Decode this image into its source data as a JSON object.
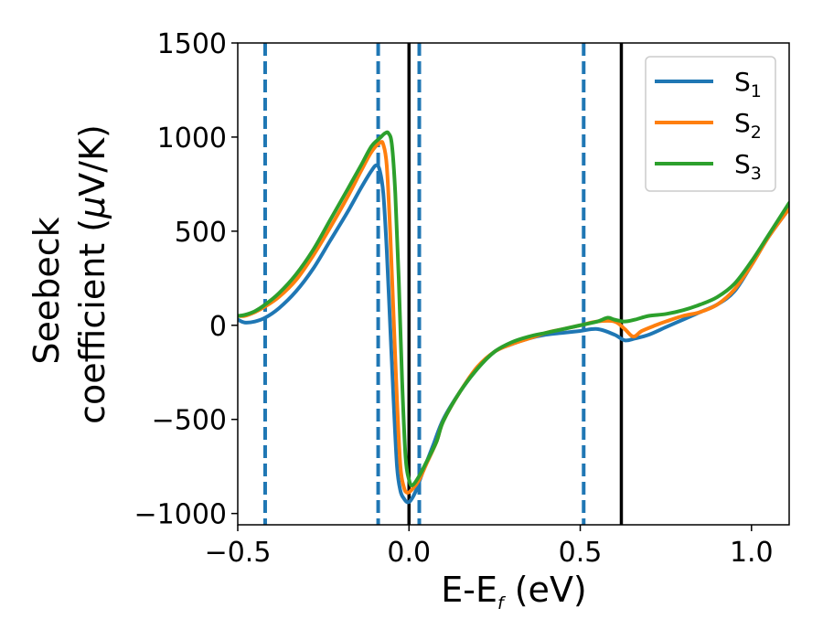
{
  "chart_data": {
    "type": "line",
    "xlabel": {
      "main": "E-E",
      "sub": "f",
      "unit": " (eV)"
    },
    "ylabel": {
      "line1": "Seebeck",
      "line2_pre": "coefficient  (",
      "mu": "μ",
      "line2_post": "V/K)"
    },
    "xlim": [
      -0.5,
      1.11
    ],
    "ylim": [
      -1060,
      1500
    ],
    "xticks": [
      -0.5,
      0.0,
      0.5,
      1.0
    ],
    "xtick_labels": [
      "−0.5",
      "0.0",
      "0.5",
      "1.0"
    ],
    "yticks": [
      -1000,
      -500,
      0,
      500,
      1000,
      1500
    ],
    "ytick_labels": [
      "−1000",
      "−500",
      "0",
      "500",
      "1000",
      "1500"
    ],
    "legend_position": "top-right",
    "grid": false,
    "series": [
      {
        "name": "S",
        "sub": "1",
        "color": "#1f77b4",
        "points": [
          [
            -0.5,
            30
          ],
          [
            -0.48,
            15
          ],
          [
            -0.45,
            20
          ],
          [
            -0.42,
            40
          ],
          [
            -0.38,
            90
          ],
          [
            -0.33,
            180
          ],
          [
            -0.28,
            300
          ],
          [
            -0.23,
            450
          ],
          [
            -0.18,
            600
          ],
          [
            -0.14,
            730
          ],
          [
            -0.11,
            820
          ],
          [
            -0.095,
            850
          ],
          [
            -0.085,
            820
          ],
          [
            -0.075,
            700
          ],
          [
            -0.065,
            400
          ],
          [
            -0.055,
            0
          ],
          [
            -0.045,
            -400
          ],
          [
            -0.035,
            -750
          ],
          [
            -0.025,
            -880
          ],
          [
            -0.015,
            -920
          ],
          [
            -0.005,
            -940
          ],
          [
            0.005,
            -930
          ],
          [
            0.02,
            -880
          ],
          [
            0.04,
            -780
          ],
          [
            0.07,
            -640
          ],
          [
            0.1,
            -500
          ],
          [
            0.15,
            -350
          ],
          [
            0.2,
            -230
          ],
          [
            0.25,
            -140
          ],
          [
            0.3,
            -100
          ],
          [
            0.35,
            -70
          ],
          [
            0.4,
            -50
          ],
          [
            0.45,
            -40
          ],
          [
            0.5,
            -30
          ],
          [
            0.55,
            -20
          ],
          [
            0.6,
            -50
          ],
          [
            0.63,
            -80
          ],
          [
            0.66,
            -70
          ],
          [
            0.7,
            -50
          ],
          [
            0.75,
            -10
          ],
          [
            0.8,
            30
          ],
          [
            0.85,
            70
          ],
          [
            0.9,
            110
          ],
          [
            0.95,
            180
          ],
          [
            1.0,
            320
          ],
          [
            1.05,
            470
          ],
          [
            1.11,
            620
          ]
        ]
      },
      {
        "name": "S",
        "sub": "2",
        "color": "#ff7f0e",
        "points": [
          [
            -0.5,
            50
          ],
          [
            -0.48,
            50
          ],
          [
            -0.45,
            70
          ],
          [
            -0.42,
            100
          ],
          [
            -0.38,
            150
          ],
          [
            -0.33,
            240
          ],
          [
            -0.28,
            370
          ],
          [
            -0.23,
            520
          ],
          [
            -0.18,
            680
          ],
          [
            -0.14,
            820
          ],
          [
            -0.11,
            920
          ],
          [
            -0.085,
            970
          ],
          [
            -0.075,
            960
          ],
          [
            -0.065,
            850
          ],
          [
            -0.055,
            500
          ],
          [
            -0.045,
            50
          ],
          [
            -0.035,
            -400
          ],
          [
            -0.025,
            -750
          ],
          [
            -0.015,
            -860
          ],
          [
            -0.005,
            -890
          ],
          [
            0.01,
            -870
          ],
          [
            0.03,
            -820
          ],
          [
            0.05,
            -740
          ],
          [
            0.08,
            -620
          ],
          [
            0.1,
            -510
          ],
          [
            0.15,
            -350
          ],
          [
            0.2,
            -220
          ],
          [
            0.25,
            -140
          ],
          [
            0.3,
            -100
          ],
          [
            0.35,
            -70
          ],
          [
            0.4,
            -40
          ],
          [
            0.45,
            -20
          ],
          [
            0.5,
            0
          ],
          [
            0.55,
            20
          ],
          [
            0.6,
            20
          ],
          [
            0.63,
            -20
          ],
          [
            0.655,
            -60
          ],
          [
            0.68,
            -30
          ],
          [
            0.72,
            0
          ],
          [
            0.75,
            20
          ],
          [
            0.8,
            50
          ],
          [
            0.85,
            70
          ],
          [
            0.9,
            110
          ],
          [
            0.95,
            190
          ],
          [
            1.0,
            320
          ],
          [
            1.05,
            470
          ],
          [
            1.11,
            620
          ]
        ]
      },
      {
        "name": "S",
        "sub": "3",
        "color": "#2ca02c",
        "points": [
          [
            -0.5,
            50
          ],
          [
            -0.48,
            55
          ],
          [
            -0.45,
            75
          ],
          [
            -0.42,
            110
          ],
          [
            -0.38,
            170
          ],
          [
            -0.33,
            270
          ],
          [
            -0.28,
            400
          ],
          [
            -0.23,
            560
          ],
          [
            -0.18,
            720
          ],
          [
            -0.14,
            850
          ],
          [
            -0.11,
            950
          ],
          [
            -0.085,
            995
          ],
          [
            -0.07,
            1020
          ],
          [
            -0.06,
            1020
          ],
          [
            -0.05,
            960
          ],
          [
            -0.04,
            700
          ],
          [
            -0.03,
            250
          ],
          [
            -0.02,
            -300
          ],
          [
            -0.01,
            -700
          ],
          [
            0.0,
            -820
          ],
          [
            0.01,
            -850
          ],
          [
            0.03,
            -800
          ],
          [
            0.05,
            -730
          ],
          [
            0.08,
            -620
          ],
          [
            0.1,
            -510
          ],
          [
            0.15,
            -350
          ],
          [
            0.2,
            -230
          ],
          [
            0.25,
            -140
          ],
          [
            0.3,
            -90
          ],
          [
            0.35,
            -60
          ],
          [
            0.4,
            -40
          ],
          [
            0.45,
            -20
          ],
          [
            0.5,
            0
          ],
          [
            0.55,
            20
          ],
          [
            0.58,
            40
          ],
          [
            0.6,
            30
          ],
          [
            0.63,
            20
          ],
          [
            0.66,
            30
          ],
          [
            0.7,
            50
          ],
          [
            0.75,
            60
          ],
          [
            0.8,
            80
          ],
          [
            0.85,
            110
          ],
          [
            0.9,
            150
          ],
          [
            0.95,
            220
          ],
          [
            1.0,
            340
          ],
          [
            1.05,
            480
          ],
          [
            1.11,
            650
          ]
        ]
      }
    ],
    "vlines": [
      {
        "x": -0.42,
        "style": "dashed",
        "color": "#1f77b4"
      },
      {
        "x": -0.09,
        "style": "dashed",
        "color": "#1f77b4"
      },
      {
        "x": 0.03,
        "style": "dashed",
        "color": "#1f77b4"
      },
      {
        "x": 0.51,
        "style": "dashed",
        "color": "#1f77b4"
      },
      {
        "x": 0.0,
        "style": "solid",
        "color": "#000000"
      },
      {
        "x": 0.62,
        "style": "solid",
        "color": "#000000"
      }
    ]
  }
}
